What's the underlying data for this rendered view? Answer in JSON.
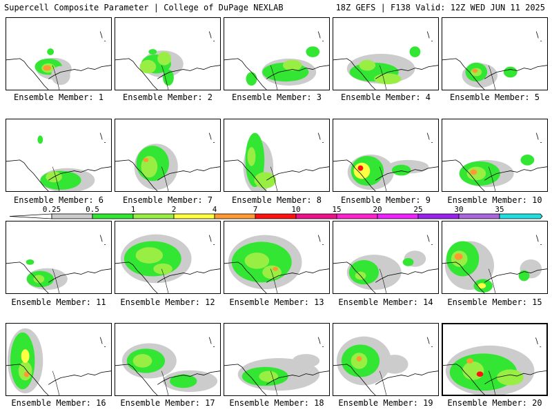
{
  "header": {
    "left": "Supercell Composite Parameter | College of DuPage NEXLAB",
    "right": "18Z GEFS | F138 Valid: 12Z WED JUN 11 2025"
  },
  "colorbar": {
    "thresholds": [
      "0.25",
      "0.5",
      "1",
      "2",
      "4",
      "7",
      "10",
      "15",
      "20",
      "25",
      "30",
      "35"
    ],
    "colors": [
      "#cccccc",
      "#33e633",
      "#99ee44",
      "#ffff44",
      "#ff9933",
      "#ff1111",
      "#ee1188",
      "#ff22cc",
      "#ee22ff",
      "#9922ee",
      "#aa66dd",
      "#22dddd"
    ]
  },
  "members": [
    "Ensemble Member: 1",
    "Ensemble Member: 2",
    "Ensemble Member: 3",
    "Ensemble Member: 4",
    "Ensemble Member: 5",
    "Ensemble Member: 6",
    "Ensemble Member: 7",
    "Ensemble Member: 8",
    "Ensemble Member: 9",
    "Ensemble Member: 10",
    "Ensemble Member: 11",
    "Ensemble Member: 12",
    "Ensemble Member: 13",
    "Ensemble Member: 14",
    "Ensemble Member: 15",
    "Ensemble Member: 16",
    "Ensemble Member: 17",
    "Ensemble Member: 18",
    "Ensemble Member: 19",
    "Ensemble Member: 20"
  ],
  "selected_member_index": 19
}
